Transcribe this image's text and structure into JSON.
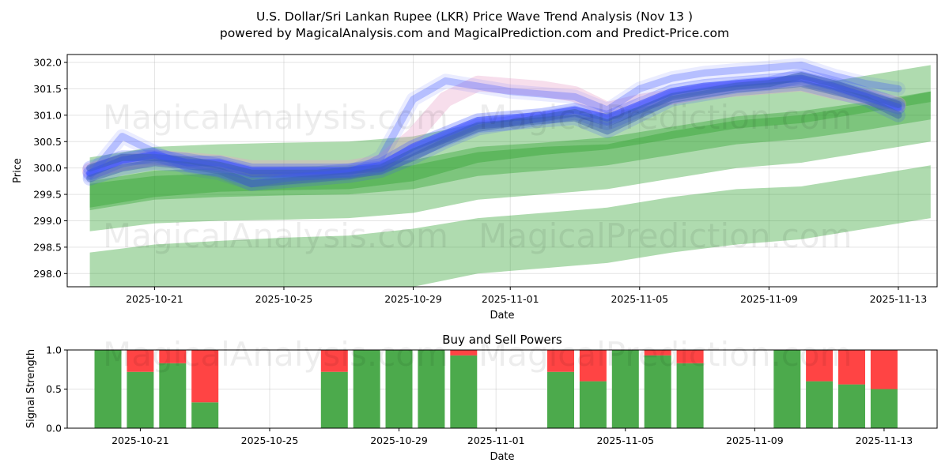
{
  "header": {
    "title_line1": "U.S. Dollar/Sri Lankan Rupee (LKR) Price Wave Trend Analysis (Nov 13 )",
    "title_line2": "powered by MagicalAnalysis.com and MagicalPrediction.com and Predict-Price.com"
  },
  "watermarks": [
    "MagicalAnalysis.com",
    "MagicalPrediction.com",
    "MagicalAnalysis.com",
    "MagicalPrediction.com"
  ],
  "chart_data": [
    {
      "type": "line",
      "title": "",
      "xlabel": "Date",
      "ylabel": "Price",
      "xlim": [
        "2025-10-18.3",
        "2025-11-14.2"
      ],
      "ylim": [
        297.75,
        302.15
      ],
      "xticks": [
        "2025-10-21",
        "2025-10-25",
        "2025-10-29",
        "2025-11-01",
        "2025-11-05",
        "2025-11-09",
        "2025-11-13"
      ],
      "yticks": [
        298.0,
        298.5,
        299.0,
        299.5,
        300.0,
        300.5,
        301.0,
        301.5,
        302.0
      ],
      "grid": true,
      "colors": {
        "bands": "#2ca02c",
        "waves": "#4055ff",
        "pinkwave": "#e8a0c8"
      },
      "trend_bands": [
        {
          "name": "upper",
          "x": [
            "2025-10-19",
            "2025-10-21",
            "2025-10-23",
            "2025-10-25",
            "2025-10-27",
            "2025-10-29",
            "2025-10-31",
            "2025-11-02",
            "2025-11-04",
            "2025-11-06",
            "2025-11-08",
            "2025-11-10",
            "2025-11-12",
            "2025-11-14"
          ],
          "upper": [
            300.2,
            300.4,
            300.45,
            300.48,
            300.5,
            300.6,
            300.85,
            300.95,
            301.05,
            301.25,
            301.45,
            301.55,
            301.75,
            301.95
          ],
          "lower": [
            299.25,
            299.45,
            299.55,
            299.58,
            299.6,
            299.75,
            300.1,
            300.25,
            300.35,
            300.55,
            300.75,
            300.85,
            301.05,
            301.25
          ]
        },
        {
          "name": "middle",
          "x": [
            "2025-10-19",
            "2025-10-21",
            "2025-10-23",
            "2025-10-25",
            "2025-10-27",
            "2025-10-29",
            "2025-10-31",
            "2025-11-02",
            "2025-11-04",
            "2025-11-06",
            "2025-11-08",
            "2025-11-10",
            "2025-11-12",
            "2025-11-14"
          ],
          "upper": [
            299.75,
            299.95,
            300.0,
            300.02,
            300.05,
            300.15,
            300.4,
            300.48,
            300.58,
            300.78,
            300.98,
            301.08,
            301.25,
            301.45
          ],
          "lower": [
            299.2,
            299.4,
            299.45,
            299.48,
            299.5,
            299.6,
            299.85,
            299.95,
            300.05,
            300.25,
            300.45,
            300.55,
            300.72,
            300.92
          ]
        },
        {
          "name": "lower",
          "x": [
            "2025-10-19",
            "2025-10-21",
            "2025-10-23",
            "2025-10-25",
            "2025-10-27",
            "2025-10-29",
            "2025-10-31",
            "2025-11-02",
            "2025-11-04",
            "2025-11-06",
            "2025-11-08",
            "2025-11-10",
            "2025-11-12",
            "2025-11-14"
          ],
          "upper": [
            299.7,
            299.85,
            299.9,
            299.92,
            299.95,
            300.05,
            300.3,
            300.4,
            300.45,
            300.7,
            300.9,
            301.0,
            301.2,
            301.45
          ],
          "lower": [
            298.8,
            298.95,
            299.0,
            299.02,
            299.05,
            299.15,
            299.4,
            299.5,
            299.6,
            299.8,
            300.0,
            300.1,
            300.3,
            300.5
          ]
        },
        {
          "name": "bottom",
          "x": [
            "2025-10-19",
            "2025-10-21",
            "2025-10-23",
            "2025-10-25",
            "2025-10-27",
            "2025-10-29",
            "2025-10-31",
            "2025-11-02",
            "2025-11-04",
            "2025-11-06",
            "2025-11-08",
            "2025-11-10",
            "2025-11-12",
            "2025-11-14"
          ],
          "upper": [
            298.4,
            298.55,
            298.62,
            298.68,
            298.72,
            298.85,
            299.05,
            299.15,
            299.25,
            299.45,
            299.6,
            299.65,
            299.85,
            300.05
          ],
          "lower": [
            297.7,
            297.7,
            297.7,
            297.7,
            297.7,
            297.75,
            298.0,
            298.1,
            298.2,
            298.4,
            298.55,
            298.65,
            298.85,
            299.05
          ]
        }
      ],
      "wave_series": [
        {
          "name": "wave-1",
          "x": [
            "2025-10-19",
            "2025-10-20",
            "2025-10-21",
            "2025-10-22",
            "2025-10-23",
            "2025-10-24",
            "2025-10-25",
            "2025-10-26",
            "2025-10-27",
            "2025-10-28",
            "2025-10-29",
            "2025-10-30",
            "2025-10-31",
            "2025-11-01",
            "2025-11-02",
            "2025-11-03",
            "2025-11-04",
            "2025-11-05",
            "2025-11-06",
            "2025-11-07",
            "2025-11-08",
            "2025-11-09",
            "2025-11-10",
            "2025-11-11",
            "2025-11-12",
            "2025-11-13"
          ],
          "values": [
            299.9,
            300.15,
            300.25,
            300.1,
            300.1,
            299.95,
            299.95,
            299.95,
            299.95,
            300.05,
            300.4,
            300.65,
            300.9,
            300.95,
            301.0,
            301.1,
            300.95,
            301.2,
            301.45,
            301.55,
            301.6,
            301.65,
            301.7,
            301.55,
            301.35,
            301.15
          ],
          "opacity": 0.55
        },
        {
          "name": "wave-2",
          "x": [
            "2025-10-19",
            "2025-10-20",
            "2025-10-21",
            "2025-10-22",
            "2025-10-23",
            "2025-10-24",
            "2025-10-25",
            "2025-10-26",
            "2025-10-27",
            "2025-10-28",
            "2025-10-29",
            "2025-10-30",
            "2025-10-31",
            "2025-11-01",
            "2025-11-02",
            "2025-11-03",
            "2025-11-04",
            "2025-11-05",
            "2025-11-06",
            "2025-11-07",
            "2025-11-08",
            "2025-11-09",
            "2025-11-10",
            "2025-11-11",
            "2025-11-12",
            "2025-11-13"
          ],
          "values": [
            300.0,
            300.2,
            300.2,
            300.15,
            300.05,
            299.9,
            299.9,
            299.9,
            299.95,
            300.0,
            300.3,
            300.55,
            300.8,
            300.85,
            300.95,
            301.05,
            300.85,
            301.1,
            301.35,
            301.45,
            301.55,
            301.6,
            301.75,
            301.6,
            301.4,
            301.2
          ],
          "opacity": 0.45
        },
        {
          "name": "wave-3",
          "x": [
            "2025-10-19",
            "2025-10-20",
            "2025-10-21",
            "2025-10-22",
            "2025-10-23",
            "2025-10-24",
            "2025-10-25",
            "2025-10-26",
            "2025-10-27",
            "2025-10-28",
            "2025-10-29",
            "2025-10-30",
            "2025-10-31",
            "2025-11-01",
            "2025-11-02",
            "2025-11-03",
            "2025-11-04",
            "2025-11-05",
            "2025-11-06",
            "2025-11-07",
            "2025-11-08",
            "2025-11-09",
            "2025-11-10",
            "2025-11-11",
            "2025-11-12",
            "2025-11-13"
          ],
          "values": [
            299.85,
            300.6,
            300.3,
            300.0,
            299.9,
            299.7,
            299.8,
            299.85,
            299.9,
            300.2,
            301.3,
            301.65,
            301.55,
            301.45,
            301.4,
            301.35,
            301.1,
            301.5,
            301.7,
            301.8,
            301.85,
            301.9,
            301.95,
            301.75,
            301.6,
            301.5
          ],
          "opacity": 0.2
        },
        {
          "name": "wave-4",
          "x": [
            "2025-10-19",
            "2025-10-20",
            "2025-10-21",
            "2025-10-22",
            "2025-10-23",
            "2025-10-24",
            "2025-10-25",
            "2025-10-26",
            "2025-10-27",
            "2025-10-28",
            "2025-10-29",
            "2025-10-30",
            "2025-10-31",
            "2025-11-01",
            "2025-11-02",
            "2025-11-03",
            "2025-11-04",
            "2025-11-05",
            "2025-11-06",
            "2025-11-07",
            "2025-11-08",
            "2025-11-09",
            "2025-11-10",
            "2025-11-11",
            "2025-11-12",
            "2025-11-13"
          ],
          "values": [
            299.8,
            300.0,
            300.1,
            300.05,
            299.95,
            299.7,
            299.75,
            299.8,
            299.85,
            299.95,
            300.2,
            300.5,
            300.75,
            300.85,
            300.9,
            300.95,
            300.7,
            301.0,
            301.3,
            301.4,
            301.5,
            301.55,
            301.6,
            301.45,
            301.3,
            301.0
          ],
          "opacity": 0.35
        }
      ],
      "pink_series": {
        "name": "wave-pink",
        "x": [
          "2025-10-19",
          "2025-10-20",
          "2025-10-21",
          "2025-10-22",
          "2025-10-23",
          "2025-10-24",
          "2025-10-25",
          "2025-10-26",
          "2025-10-27",
          "2025-10-28",
          "2025-10-29",
          "2025-10-30",
          "2025-10-31",
          "2025-11-01",
          "2025-11-02",
          "2025-11-03",
          "2025-11-04",
          "2025-11-05",
          "2025-11-06",
          "2025-11-07",
          "2025-11-08",
          "2025-11-09",
          "2025-11-10",
          "2025-11-11",
          "2025-11-12",
          "2025-11-13"
        ],
        "values": [
          299.95,
          300.1,
          300.2,
          300.15,
          300.1,
          300.0,
          300.0,
          300.0,
          300.0,
          300.1,
          300.6,
          301.3,
          301.6,
          301.55,
          301.5,
          301.4,
          301.1,
          301.25,
          301.35,
          301.45,
          301.5,
          301.55,
          301.6,
          301.45,
          301.35,
          301.2
        ],
        "opacity": 0.35
      }
    },
    {
      "type": "bar",
      "title": "Buy and Sell Powers",
      "xlabel": "Date",
      "ylabel": "Signal Strength",
      "xlim": [
        "2025-10-18.3",
        "2025-11-14.2"
      ],
      "ylim": [
        0,
        1
      ],
      "xticks": [
        "2025-10-21",
        "2025-10-25",
        "2025-10-29",
        "2025-11-01",
        "2025-11-05",
        "2025-11-09",
        "2025-11-13"
      ],
      "yticks": [
        0.0,
        0.5,
        1.0
      ],
      "grid": true,
      "colors": {
        "buy": "#4caa4c",
        "sell": "#ff4444"
      },
      "categories": [
        "2025-10-20",
        "2025-10-21",
        "2025-10-22",
        "2025-10-23",
        "2025-10-27",
        "2025-10-28",
        "2025-10-29",
        "2025-10-30",
        "2025-10-31",
        "2025-11-03",
        "2025-11-04",
        "2025-11-05",
        "2025-11-06",
        "2025-11-07",
        "2025-11-10",
        "2025-11-11",
        "2025-11-12",
        "2025-11-13"
      ],
      "series": [
        {
          "name": "Buy",
          "values": [
            1.0,
            0.72,
            0.83,
            0.33,
            0.72,
            1.0,
            1.0,
            1.0,
            0.93,
            0.72,
            0.6,
            1.0,
            0.93,
            0.83,
            1.0,
            0.6,
            0.56,
            0.5
          ]
        },
        {
          "name": "Sell",
          "values": [
            0.0,
            0.28,
            0.17,
            0.67,
            0.28,
            0.0,
            0.0,
            0.0,
            0.07,
            0.28,
            0.4,
            0.0,
            0.07,
            0.17,
            0.0,
            0.4,
            0.44,
            0.5
          ]
        }
      ]
    }
  ]
}
